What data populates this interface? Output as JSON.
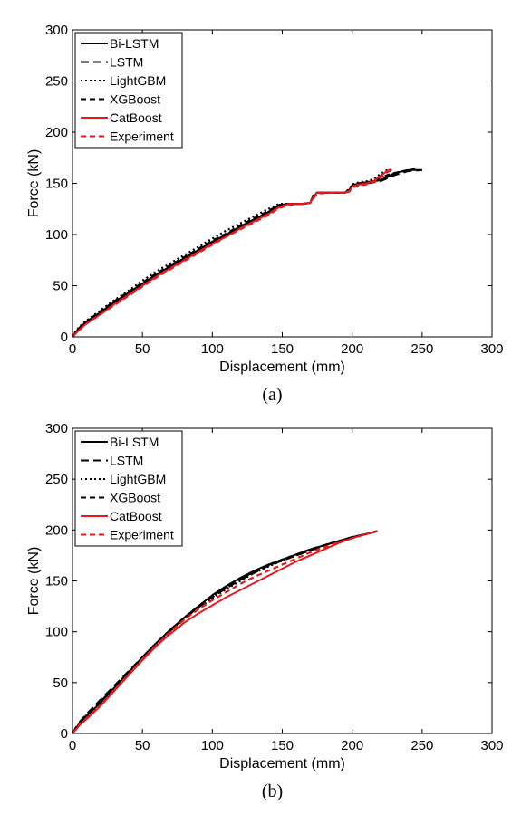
{
  "chart_data": [
    {
      "type": "line",
      "caption": "(a)",
      "xlabel": "Displacement (mm)",
      "ylabel": "Force (kN)",
      "xlim": [
        0,
        300
      ],
      "ylim": [
        0,
        300
      ],
      "xticks": [
        0,
        50,
        100,
        150,
        200,
        250,
        300
      ],
      "yticks": [
        0,
        50,
        100,
        150,
        200,
        250,
        300
      ],
      "grid": false,
      "legend_position": "top-left",
      "series": [
        {
          "name": "Bi-LSTM",
          "color": "#000000",
          "dash": "solid",
          "x": [
            0,
            2,
            5,
            10,
            20,
            30,
            40,
            50,
            60,
            70,
            80,
            90,
            100,
            110,
            120,
            130,
            140,
            148,
            155,
            165,
            170,
            172,
            175,
            185,
            195,
            198,
            200,
            205,
            210,
            215,
            220,
            225,
            230,
            240,
            250
          ],
          "y": [
            0,
            4,
            9,
            15,
            24,
            34,
            43,
            52,
            61,
            69,
            77,
            85,
            93,
            100,
            108,
            115,
            122,
            129,
            130,
            130,
            131,
            137,
            141,
            141,
            141,
            144,
            148,
            150,
            151,
            152,
            153,
            156,
            160,
            163,
            163
          ]
        },
        {
          "name": "LSTM",
          "color": "#000000",
          "dash": "long",
          "x": [
            0,
            2,
            5,
            10,
            20,
            30,
            40,
            50,
            60,
            70,
            80,
            90,
            100,
            110,
            120,
            130,
            140,
            148,
            155,
            165,
            170,
            172,
            175,
            185,
            195,
            198,
            200,
            205,
            210,
            215,
            220,
            225,
            230,
            240,
            250
          ],
          "y": [
            0,
            3,
            8,
            14,
            23,
            33,
            42,
            51,
            60,
            68,
            76,
            84,
            92,
            99,
            107,
            114,
            121,
            128,
            130,
            130,
            131,
            136,
            141,
            141,
            141,
            143,
            147,
            149,
            150,
            151,
            152,
            155,
            158,
            162,
            163
          ]
        },
        {
          "name": "LightGBM",
          "color": "#000000",
          "dash": "dot",
          "x": [
            0,
            2,
            5,
            10,
            20,
            30,
            40,
            50,
            60,
            70,
            80,
            90,
            100,
            110,
            120,
            130,
            140,
            148,
            155,
            165,
            170,
            172,
            175,
            185,
            195,
            198,
            200,
            205,
            210,
            215,
            220,
            225,
            230
          ],
          "y": [
            0,
            5,
            10,
            16,
            26,
            36,
            45,
            55,
            64,
            72,
            80,
            88,
            96,
            104,
            111,
            118,
            125,
            130,
            130,
            130,
            131,
            138,
            141,
            141,
            141,
            145,
            149,
            151,
            152,
            154,
            159,
            163,
            163
          ]
        },
        {
          "name": "XGBoost",
          "color": "#000000",
          "dash": "dash",
          "x": [
            0,
            2,
            5,
            10,
            20,
            30,
            40,
            50,
            60,
            70,
            80,
            90,
            100,
            110,
            120,
            130,
            140,
            148,
            155,
            165,
            170,
            172,
            175,
            185,
            195,
            198,
            200,
            205,
            210,
            215,
            220,
            225,
            230,
            240,
            245
          ],
          "y": [
            0,
            4,
            9,
            15,
            25,
            35,
            44,
            53,
            62,
            70,
            78,
            86,
            94,
            101,
            109,
            116,
            123,
            129,
            130,
            130,
            131,
            137,
            141,
            141,
            141,
            144,
            148,
            150,
            151,
            152,
            155,
            158,
            160,
            163,
            164
          ]
        },
        {
          "name": "CatBoost",
          "color": "#e31a1c",
          "dash": "solid",
          "x": [
            0,
            2,
            5,
            10,
            20,
            30,
            40,
            50,
            60,
            70,
            80,
            90,
            100,
            110,
            120,
            130,
            140,
            148,
            155,
            165,
            170,
            172,
            175,
            185,
            195,
            198,
            200,
            205,
            210,
            215,
            220,
            225,
            228
          ],
          "y": [
            0,
            3,
            7,
            13,
            22,
            32,
            41,
            50,
            59,
            67,
            75,
            83,
            91,
            98,
            106,
            113,
            120,
            127,
            130,
            130,
            131,
            136,
            141,
            141,
            141,
            143,
            147,
            149,
            150,
            152,
            157,
            162,
            164
          ]
        },
        {
          "name": "Experiment",
          "color": "#e31a1c",
          "dash": "dash",
          "x": [
            0,
            2,
            5,
            10,
            20,
            30,
            40,
            50,
            60,
            70,
            80,
            90,
            100,
            110,
            120,
            130,
            140,
            148,
            155,
            165,
            170,
            172,
            175,
            185,
            195,
            198,
            200,
            205,
            210,
            215,
            220,
            225,
            230
          ],
          "y": [
            0,
            3,
            7,
            13,
            22,
            31,
            40,
            49,
            58,
            66,
            74,
            82,
            90,
            98,
            105,
            112,
            119,
            126,
            129,
            130,
            131,
            135,
            140,
            141,
            141,
            142,
            146,
            148,
            149,
            151,
            155,
            161,
            164
          ]
        }
      ]
    },
    {
      "type": "line",
      "caption": "(b)",
      "xlabel": "Displacement (mm)",
      "ylabel": "Force (kN)",
      "xlim": [
        0,
        300
      ],
      "ylim": [
        0,
        300
      ],
      "xticks": [
        0,
        50,
        100,
        150,
        200,
        250,
        300
      ],
      "yticks": [
        0,
        50,
        100,
        150,
        200,
        250,
        300
      ],
      "grid": false,
      "legend_position": "top-left",
      "series": [
        {
          "name": "Bi-LSTM",
          "color": "#000000",
          "dash": "solid",
          "x": [
            0,
            2,
            5,
            10,
            20,
            30,
            40,
            50,
            60,
            70,
            80,
            90,
            100,
            110,
            120,
            130,
            140,
            150,
            160,
            170,
            180,
            190,
            200,
            210,
            218
          ],
          "y": [
            0,
            4,
            10,
            17,
            30,
            45,
            60,
            75,
            89,
            102,
            114,
            125,
            136,
            145,
            153,
            160,
            166,
            171,
            176,
            181,
            185,
            189,
            193,
            196,
            199
          ]
        },
        {
          "name": "LSTM",
          "color": "#000000",
          "dash": "long",
          "x": [
            0,
            2,
            5,
            10,
            20,
            30,
            40,
            50,
            60,
            70,
            80,
            90,
            100,
            110,
            120,
            130,
            140,
            150,
            160,
            170,
            180,
            190,
            200,
            210,
            218
          ],
          "y": [
            0,
            5,
            11,
            19,
            33,
            47,
            61,
            75,
            89,
            101,
            113,
            124,
            134,
            143,
            151,
            158,
            165,
            170,
            175,
            180,
            185,
            189,
            193,
            196,
            199
          ]
        },
        {
          "name": "LightGBM",
          "color": "#000000",
          "dash": "dot",
          "x": [
            0,
            2,
            5,
            10,
            20,
            30,
            40,
            50,
            60,
            70,
            80,
            90,
            100,
            110,
            120,
            130,
            140,
            150,
            160,
            170,
            180,
            190,
            200,
            210,
            218
          ],
          "y": [
            0,
            4,
            9,
            16,
            29,
            44,
            59,
            74,
            88,
            101,
            113,
            123,
            133,
            142,
            150,
            158,
            164,
            170,
            175,
            180,
            185,
            189,
            193,
            196,
            199
          ]
        },
        {
          "name": "XGBoost",
          "color": "#000000",
          "dash": "dash",
          "x": [
            0,
            2,
            5,
            10,
            20,
            30,
            40,
            50,
            60,
            70,
            80,
            90,
            100,
            110,
            120,
            130,
            140,
            150,
            160,
            170,
            180,
            190,
            200,
            210,
            218
          ],
          "y": [
            0,
            4,
            10,
            18,
            31,
            46,
            60,
            75,
            89,
            102,
            114,
            125,
            135,
            144,
            152,
            159,
            165,
            171,
            176,
            181,
            185,
            189,
            193,
            196,
            199
          ]
        },
        {
          "name": "CatBoost",
          "color": "#e31a1c",
          "dash": "solid",
          "x": [
            0,
            2,
            5,
            10,
            20,
            30,
            40,
            50,
            60,
            70,
            80,
            90,
            100,
            110,
            120,
            130,
            140,
            150,
            160,
            170,
            180,
            190,
            200,
            210,
            218
          ],
          "y": [
            0,
            3,
            8,
            14,
            27,
            42,
            57,
            72,
            86,
            98,
            109,
            118,
            126,
            134,
            141,
            148,
            155,
            162,
            169,
            175,
            181,
            187,
            192,
            196,
            199
          ]
        },
        {
          "name": "Experiment",
          "color": "#e31a1c",
          "dash": "dash",
          "x": [
            0,
            2,
            5,
            10,
            20,
            30,
            40,
            50,
            60,
            70,
            80,
            90,
            100,
            110,
            120,
            130,
            140,
            150,
            160,
            170,
            180,
            190,
            200,
            210,
            218
          ],
          "y": [
            0,
            4,
            9,
            15,
            28,
            43,
            58,
            73,
            87,
            100,
            112,
            122,
            131,
            139,
            147,
            154,
            160,
            166,
            172,
            178,
            183,
            188,
            192,
            196,
            199
          ]
        }
      ]
    }
  ]
}
